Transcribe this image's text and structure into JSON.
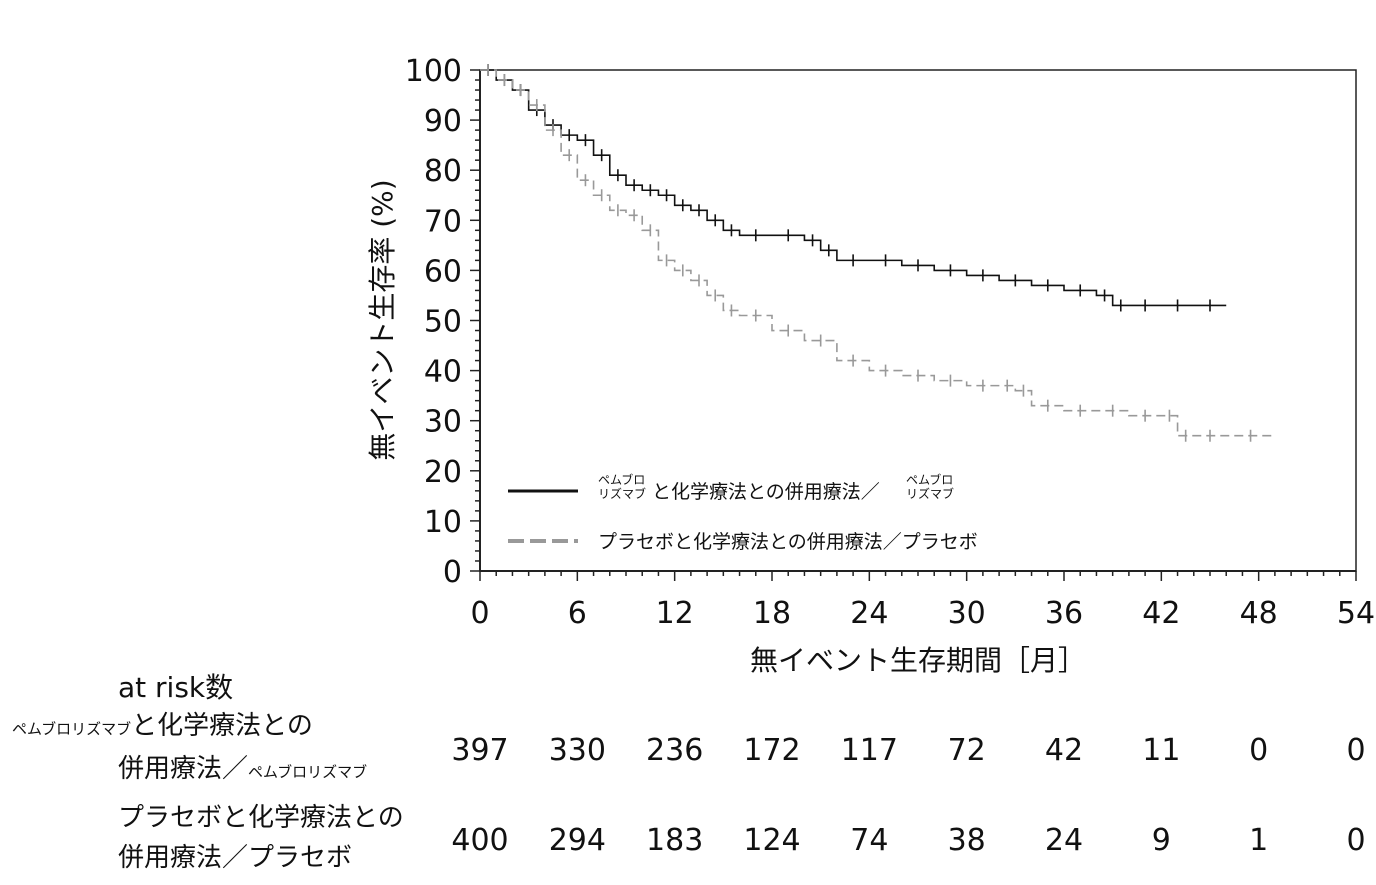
{
  "chart_data": {
    "type": "line",
    "step": true,
    "xlabel": "無イベント生存期間［月］",
    "ylabel": "無イベント生存率 (%)",
    "xlim": [
      0,
      54
    ],
    "ylim": [
      0,
      100
    ],
    "xticks": [
      0,
      6,
      12,
      18,
      24,
      30,
      36,
      42,
      48,
      54
    ],
    "yticks": [
      0,
      10,
      20,
      30,
      40,
      50,
      60,
      70,
      80,
      90,
      100
    ],
    "legend_position": "bottom-left inside plot",
    "series": [
      {
        "name_small_prefix": "ペムブロリズマブ",
        "name_main": "と化学療法との併用療法／",
        "name_small_suffix": "ペムブロリズマブ",
        "color": "#111111",
        "dash": "solid",
        "x": [
          0,
          1,
          2,
          3,
          4,
          5,
          6,
          7,
          8,
          9,
          10,
          11,
          12,
          13,
          14,
          15,
          16,
          18,
          20,
          21,
          22,
          24,
          26,
          28,
          30,
          32,
          34,
          36,
          38,
          39,
          40,
          42,
          44,
          46
        ],
        "y": [
          100,
          98,
          96,
          92,
          89,
          87,
          86,
          83,
          79,
          77,
          76,
          75,
          73,
          72,
          70,
          68,
          67,
          67,
          66,
          64,
          62,
          62,
          61,
          60,
          59,
          58,
          57,
          56,
          55,
          53,
          53,
          53,
          53,
          53
        ]
      },
      {
        "name": "プラセボと化学療法との併用療法／プラセボ",
        "color": "#999999",
        "dash": "dashed",
        "x": [
          0,
          1,
          2,
          3,
          4,
          5,
          6,
          7,
          8,
          9,
          10,
          11,
          12,
          13,
          14,
          15,
          16,
          18,
          20,
          22,
          24,
          26,
          28,
          30,
          32,
          33,
          34,
          36,
          38,
          40,
          42,
          43,
          44,
          46,
          49
        ],
        "y": [
          100,
          98,
          96,
          93,
          88,
          83,
          78,
          75,
          72,
          71,
          68,
          62,
          60,
          58,
          55,
          52,
          51,
          48,
          46,
          42,
          40,
          39,
          38,
          37,
          37,
          36,
          33,
          32,
          32,
          31,
          31,
          27,
          27,
          27,
          27
        ]
      }
    ],
    "at_risk": {
      "title": "at risk数",
      "times": [
        0,
        6,
        12,
        18,
        24,
        30,
        36,
        42,
        48,
        54
      ],
      "rows": [
        {
          "label_small_prefix": "ペムブロリズマブ",
          "label_line1": "と化学療法との",
          "label_line2": "併用療法／",
          "label_small_suffix": "ペムブロリズマブ",
          "values": [
            "397",
            "330",
            "236",
            "172",
            "117",
            "72",
            "42",
            "11",
            "0",
            "0"
          ]
        },
        {
          "label_line1": "プラセボと化学療法との",
          "label_line2": "併用療法／プラセボ",
          "values": [
            "400",
            "294",
            "183",
            "124",
            "74",
            "38",
            "24",
            "9",
            "1",
            "0"
          ]
        }
      ]
    }
  }
}
